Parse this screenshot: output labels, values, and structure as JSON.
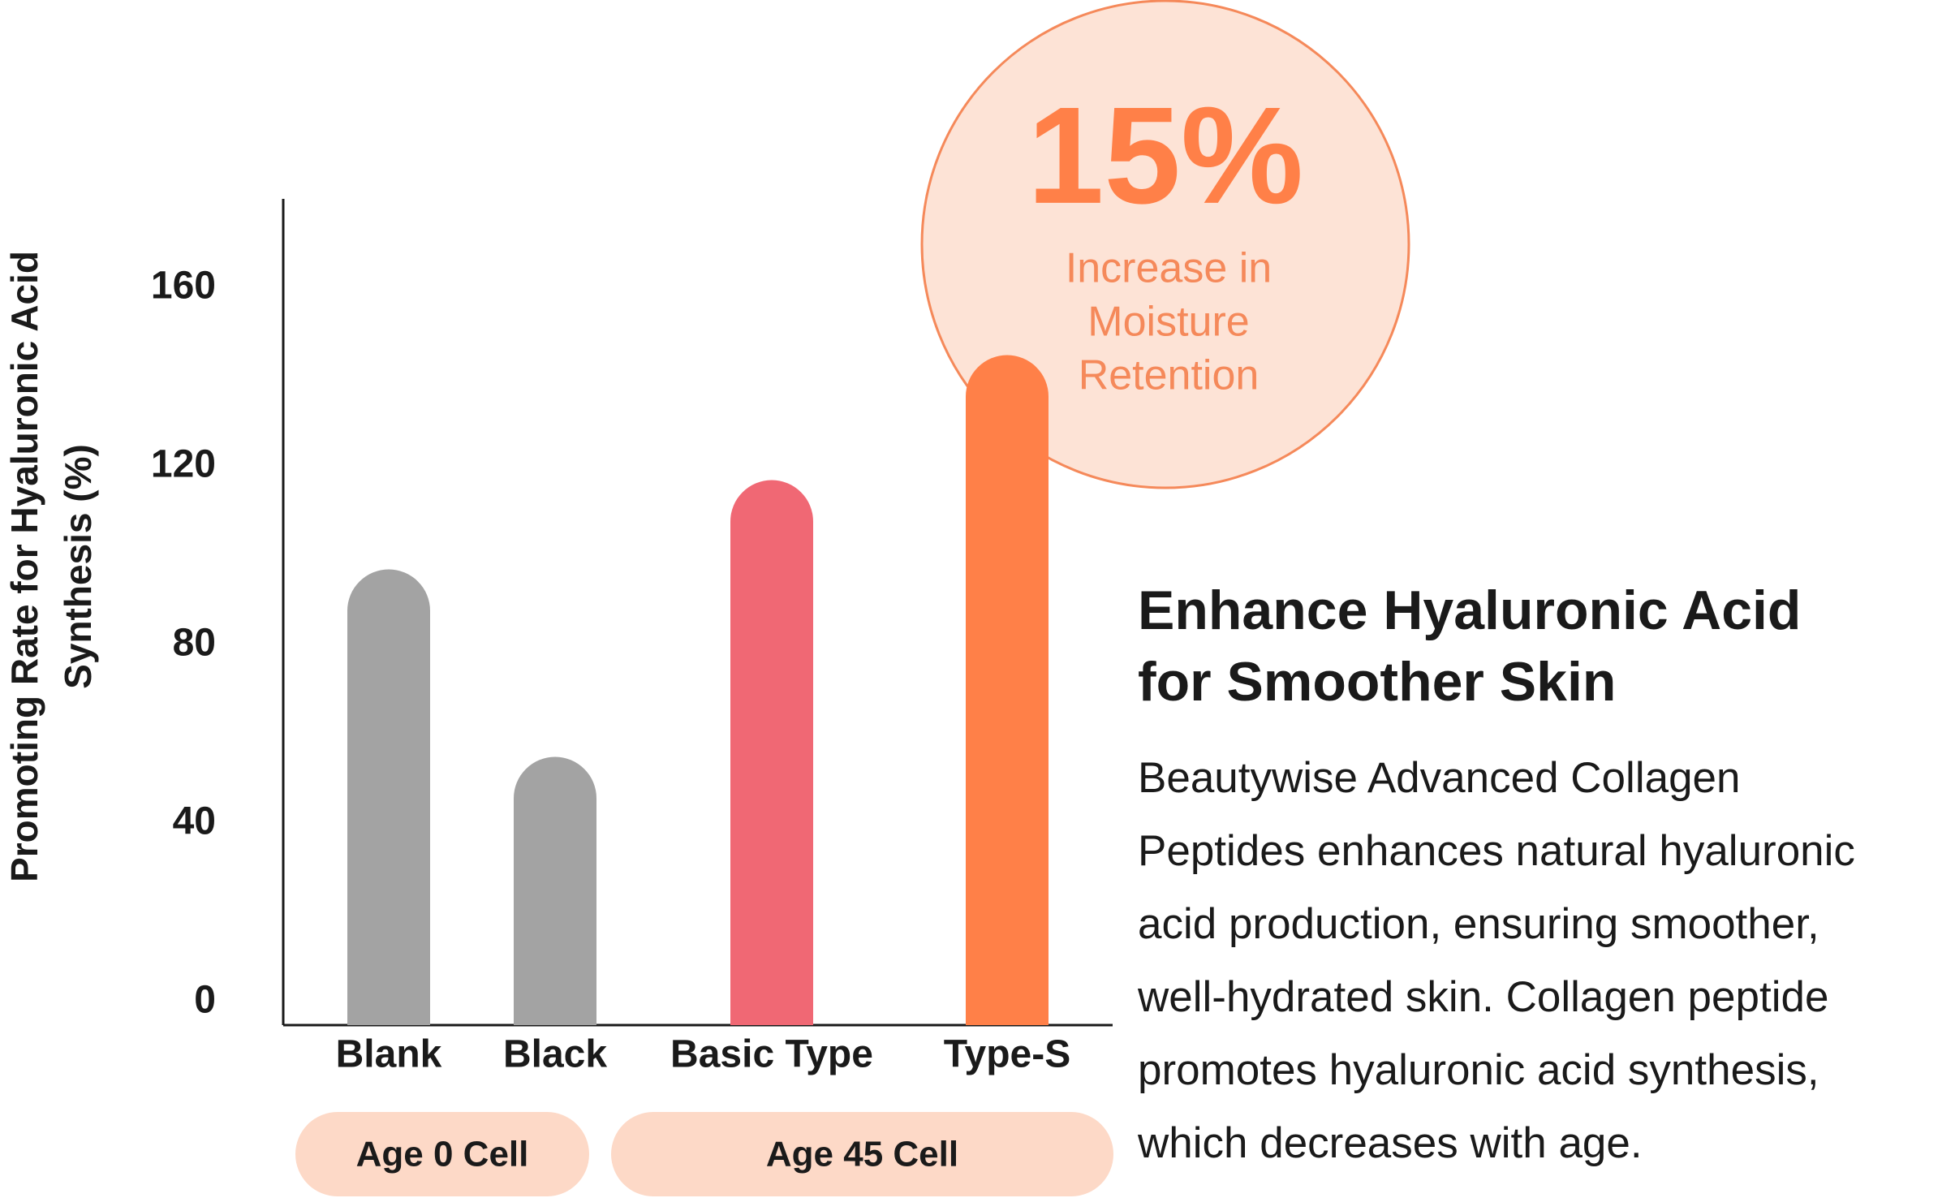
{
  "chart_data": {
    "type": "bar",
    "y_label": [
      "Promoting Rate for Hyaluronic Acid",
      "Synthesis (%)"
    ],
    "categories": [
      "Blank",
      "Black",
      "Basic Type",
      "Type-S"
    ],
    "values": [
      97,
      55,
      117,
      145
    ],
    "colors": [
      "#a3a3a3",
      "#a3a3a3",
      "#f06874",
      "#ff8048"
    ],
    "ylim": [
      0,
      180
    ],
    "yticks": [
      0,
      40,
      80,
      120,
      160
    ],
    "groups": [
      {
        "label": "Age 0 Cell",
        "categories": [
          0,
          1
        ]
      },
      {
        "label": "Age 45 Cell",
        "categories": [
          2,
          3
        ]
      }
    ],
    "callout": {
      "headline": "15%",
      "lines": [
        "Increase in",
        "Moisture",
        "Retention"
      ]
    }
  },
  "text": {
    "heading": [
      "Enhance Hyaluronic Acid",
      "for Smoother Skin"
    ],
    "body": [
      "Beautywise Advanced Collagen",
      "Peptides enhances natural hyaluronic",
      "acid production, ensuring smoother,",
      "well-hydrated skin. Collagen peptide",
      "promotes hyaluronic acid synthesis,",
      "which decreases with age."
    ]
  }
}
